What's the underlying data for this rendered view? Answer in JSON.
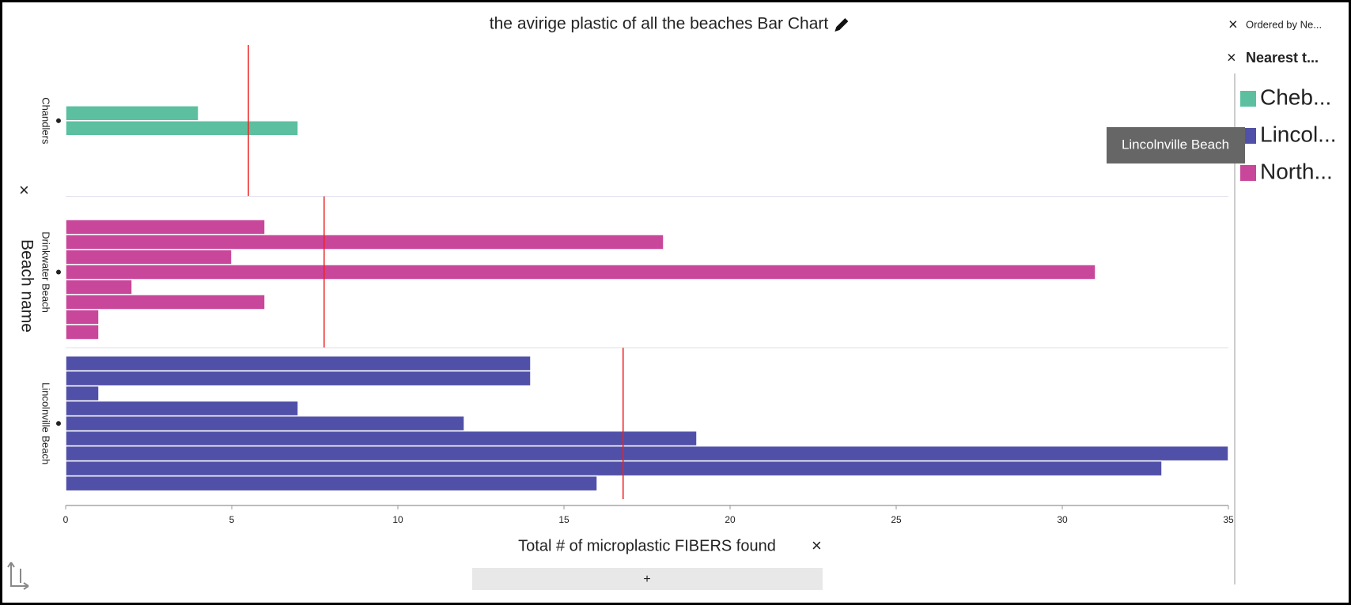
{
  "chart_data": {
    "type": "bar",
    "title": "the avirige plastic of all the beaches Bar Chart",
    "x_label": "Total # of microplastic FIBERS found",
    "y_label": "Beach name",
    "ordered_by": "Ordered by Ne...",
    "legend_attribute": "Nearest t...",
    "tooltip": "Lincolnville Beach",
    "series": [
      {
        "name": "Chandlers",
        "legend": "Cheb...",
        "color": "#5cc0a0",
        "values": [
          4,
          7
        ],
        "mean": 5.5
      },
      {
        "name": "Drinkwater Beach",
        "legend": "North...",
        "color": "#c8479a",
        "values": [
          0,
          6,
          18,
          5,
          31,
          2,
          6,
          1,
          1
        ],
        "mean": 7.78
      },
      {
        "name": "Lincolnville Beach",
        "legend": "Lincol...",
        "color": "#5150a8",
        "values": [
          14,
          14,
          1,
          7,
          12,
          19,
          35,
          33,
          16
        ],
        "mean": 16.78
      }
    ],
    "legend_order": [
      0,
      2,
      1
    ],
    "xlim": [
      0,
      35
    ],
    "xticks": [
      0,
      5,
      10,
      15,
      20,
      25,
      30,
      35
    ]
  }
}
